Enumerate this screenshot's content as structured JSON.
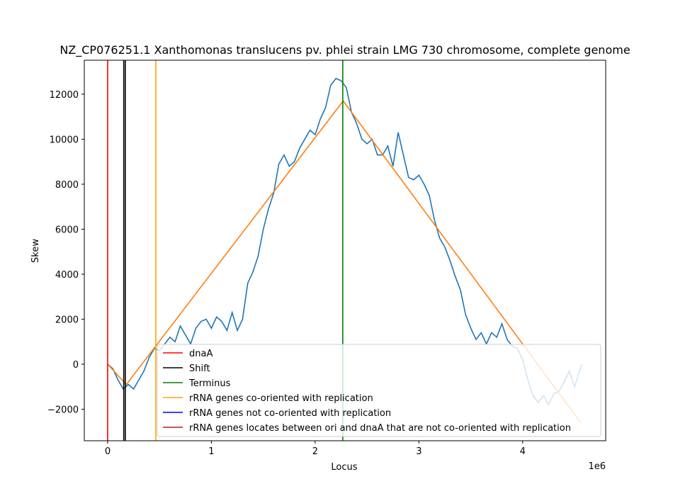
{
  "chart_data": {
    "type": "line",
    "title": "NZ_CP076251.1 Xanthomonas translucens pv. phlei strain LMG 730 chromosome, complete genome",
    "x_label": "Locus",
    "y_label": "Skew",
    "x_offset_label": "1e6",
    "xlim": [
      -225000,
      4800000
    ],
    "ylim": [
      -3400,
      13510
    ],
    "xticks": [
      0,
      {
        "value": 1000000,
        "label": "1"
      },
      {
        "value": 2000000,
        "label": "2"
      },
      {
        "value": 3000000,
        "label": "3"
      },
      {
        "value": 4000000,
        "label": "4"
      }
    ],
    "yticks": [
      {
        "value": -2000,
        "label": "−2000"
      },
      0,
      2000,
      4000,
      6000,
      8000,
      10000,
      12000
    ],
    "series": [
      {
        "color": "#1f77b4",
        "x": [
          0,
          50000,
          100000,
          150000,
          200000,
          250000,
          300000,
          350000,
          400000,
          450000,
          500000,
          550000,
          600000,
          650000,
          700000,
          750000,
          800000,
          850000,
          900000,
          950000,
          1000000,
          1050000,
          1100000,
          1150000,
          1200000,
          1250000,
          1300000,
          1350000,
          1400000,
          1450000,
          1500000,
          1550000,
          1600000,
          1650000,
          1700000,
          1750000,
          1800000,
          1850000,
          1900000,
          1950000,
          2000000,
          2050000,
          2100000,
          2150000,
          2200000,
          2250000,
          2300000,
          2350000,
          2400000,
          2450000,
          2500000,
          2550000,
          2600000,
          2650000,
          2700000,
          2750000,
          2800000,
          2850000,
          2900000,
          2950000,
          3000000,
          3050000,
          3100000,
          3150000,
          3200000,
          3250000,
          3300000,
          3350000,
          3400000,
          3450000,
          3500000,
          3550000,
          3600000,
          3650000,
          3700000,
          3750000,
          3800000,
          3850000,
          3900000,
          3950000,
          4000000,
          4050000,
          4100000,
          4150000,
          4200000,
          4250000,
          4300000,
          4350000,
          4400000,
          4450000,
          4500000,
          4550000,
          4570000
        ],
        "values": [
          0,
          -200,
          -700,
          -1100,
          -900,
          -1100,
          -700,
          -300,
          300,
          700,
          600,
          900,
          1200,
          1000,
          1700,
          1300,
          900,
          1600,
          1900,
          2000,
          1600,
          2100,
          1900,
          1500,
          2300,
          1500,
          2000,
          3600,
          4100,
          4800,
          6000,
          6900,
          7600,
          8900,
          9300,
          8800,
          9000,
          9600,
          10000,
          10400,
          10200,
          10900,
          11400,
          12400,
          12700,
          12600,
          12300,
          11200,
          10700,
          10000,
          9800,
          10000,
          9300,
          9300,
          9700,
          8800,
          10300,
          9300,
          8300,
          8200,
          8400,
          8000,
          7500,
          6400,
          5600,
          5200,
          4600,
          3900,
          3300,
          2200,
          1600,
          1100,
          1400,
          900,
          1400,
          1200,
          1800,
          1100,
          800,
          700,
          200,
          -700,
          -1400,
          -1700,
          -1400,
          -1800,
          -1300,
          -1200,
          -800,
          -300,
          -1000,
          -300,
          0
        ]
      },
      {
        "color": "#ff7f0e",
        "x": [
          0,
          180000,
          2270000,
          4560000
        ],
        "values": [
          0,
          -900,
          11700,
          -2600
        ]
      }
    ],
    "vlines": [
      {
        "name": "dnaA",
        "color": "#ff0000",
        "x": [
          0
        ]
      },
      {
        "name": "Shift",
        "color": "#000000",
        "x": [
          155000,
          170000
        ]
      },
      {
        "name": "Terminus",
        "color": "#008000",
        "x": [
          2266000
        ]
      },
      {
        "name": "rRNA genes co-oriented with replication",
        "color": "#ffa500",
        "x": [
          464000
        ]
      },
      {
        "name": "rRNA genes not co-oriented with replication",
        "color": "#0000ff",
        "x": []
      },
      {
        "name": "rRNA genes locates between ori and dnaA that are not co-oriented with replication",
        "color": "#b22222",
        "x": []
      }
    ],
    "legend": "lower right"
  }
}
